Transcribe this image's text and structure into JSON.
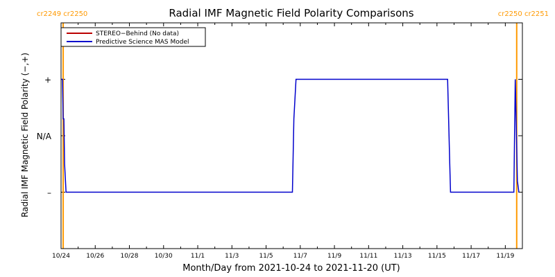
{
  "chart_data": {
    "type": "line",
    "title": "Radial IMF Magnetic Field Polarity Comparisons",
    "xlabel": "Month/Day from 2021-10-24 to 2021-11-20 (UT)",
    "ylabel": "Radial IMF Magnetic Field Polarity (−,+)",
    "x_tick_labels": [
      "10/24",
      "10/26",
      "10/28",
      "10/30",
      "11/1",
      "11/3",
      "11/5",
      "11/7",
      "11/9",
      "11/11",
      "11/13",
      "11/15",
      "11/17",
      "11/19"
    ],
    "y_ticks": [
      {
        "label": "+",
        "value": 1
      },
      {
        "label": "N/A",
        "value": 0
      },
      {
        "label": "–",
        "value": -1
      }
    ],
    "ylim": [
      -2,
      2
    ],
    "xlim": [
      "2021-10-24",
      "2021-11-20"
    ],
    "carrington_markers": [
      {
        "label": "cr2249 cr2250",
        "date": "2021-10-24T03:00",
        "color": "#ff9900",
        "side": "left"
      },
      {
        "label": "cr2250 cr2251",
        "date": "2021-11-19T16:00",
        "color": "#ff9900",
        "side": "right"
      }
    ],
    "legend": {
      "position": "top-left",
      "entries": [
        {
          "label": "STEREO−Behind (No data)",
          "color": "#bb0000"
        },
        {
          "label": "Predictive Science MAS Model",
          "color": "#0000cc"
        }
      ]
    },
    "series": [
      {
        "name": "Predictive Science MAS Model",
        "color": "#0000cc",
        "points": [
          [
            "2021-10-24T00:00",
            1
          ],
          [
            "2021-10-24T02:00",
            1
          ],
          [
            "2021-10-24T03:00",
            0.3
          ],
          [
            "2021-10-24T04:00",
            0.3
          ],
          [
            "2021-10-24T05:00",
            -0.5
          ],
          [
            "2021-10-24T07:00",
            -1
          ],
          [
            "2021-11-06T13:00",
            -1
          ],
          [
            "2021-11-06T15:00",
            0.3
          ],
          [
            "2021-11-06T18:00",
            1
          ],
          [
            "2021-11-15T15:00",
            1
          ],
          [
            "2021-11-15T18:00",
            -0.5
          ],
          [
            "2021-11-15T19:00",
            -1
          ],
          [
            "2021-11-19T12:00",
            -1
          ],
          [
            "2021-11-19T13:00",
            0
          ],
          [
            "2021-11-19T14:00",
            1
          ],
          [
            "2021-11-19T15:00",
            0.4
          ],
          [
            "2021-11-19T17:00",
            -0.8
          ],
          [
            "2021-11-19T19:00",
            -1
          ]
        ]
      }
    ]
  }
}
